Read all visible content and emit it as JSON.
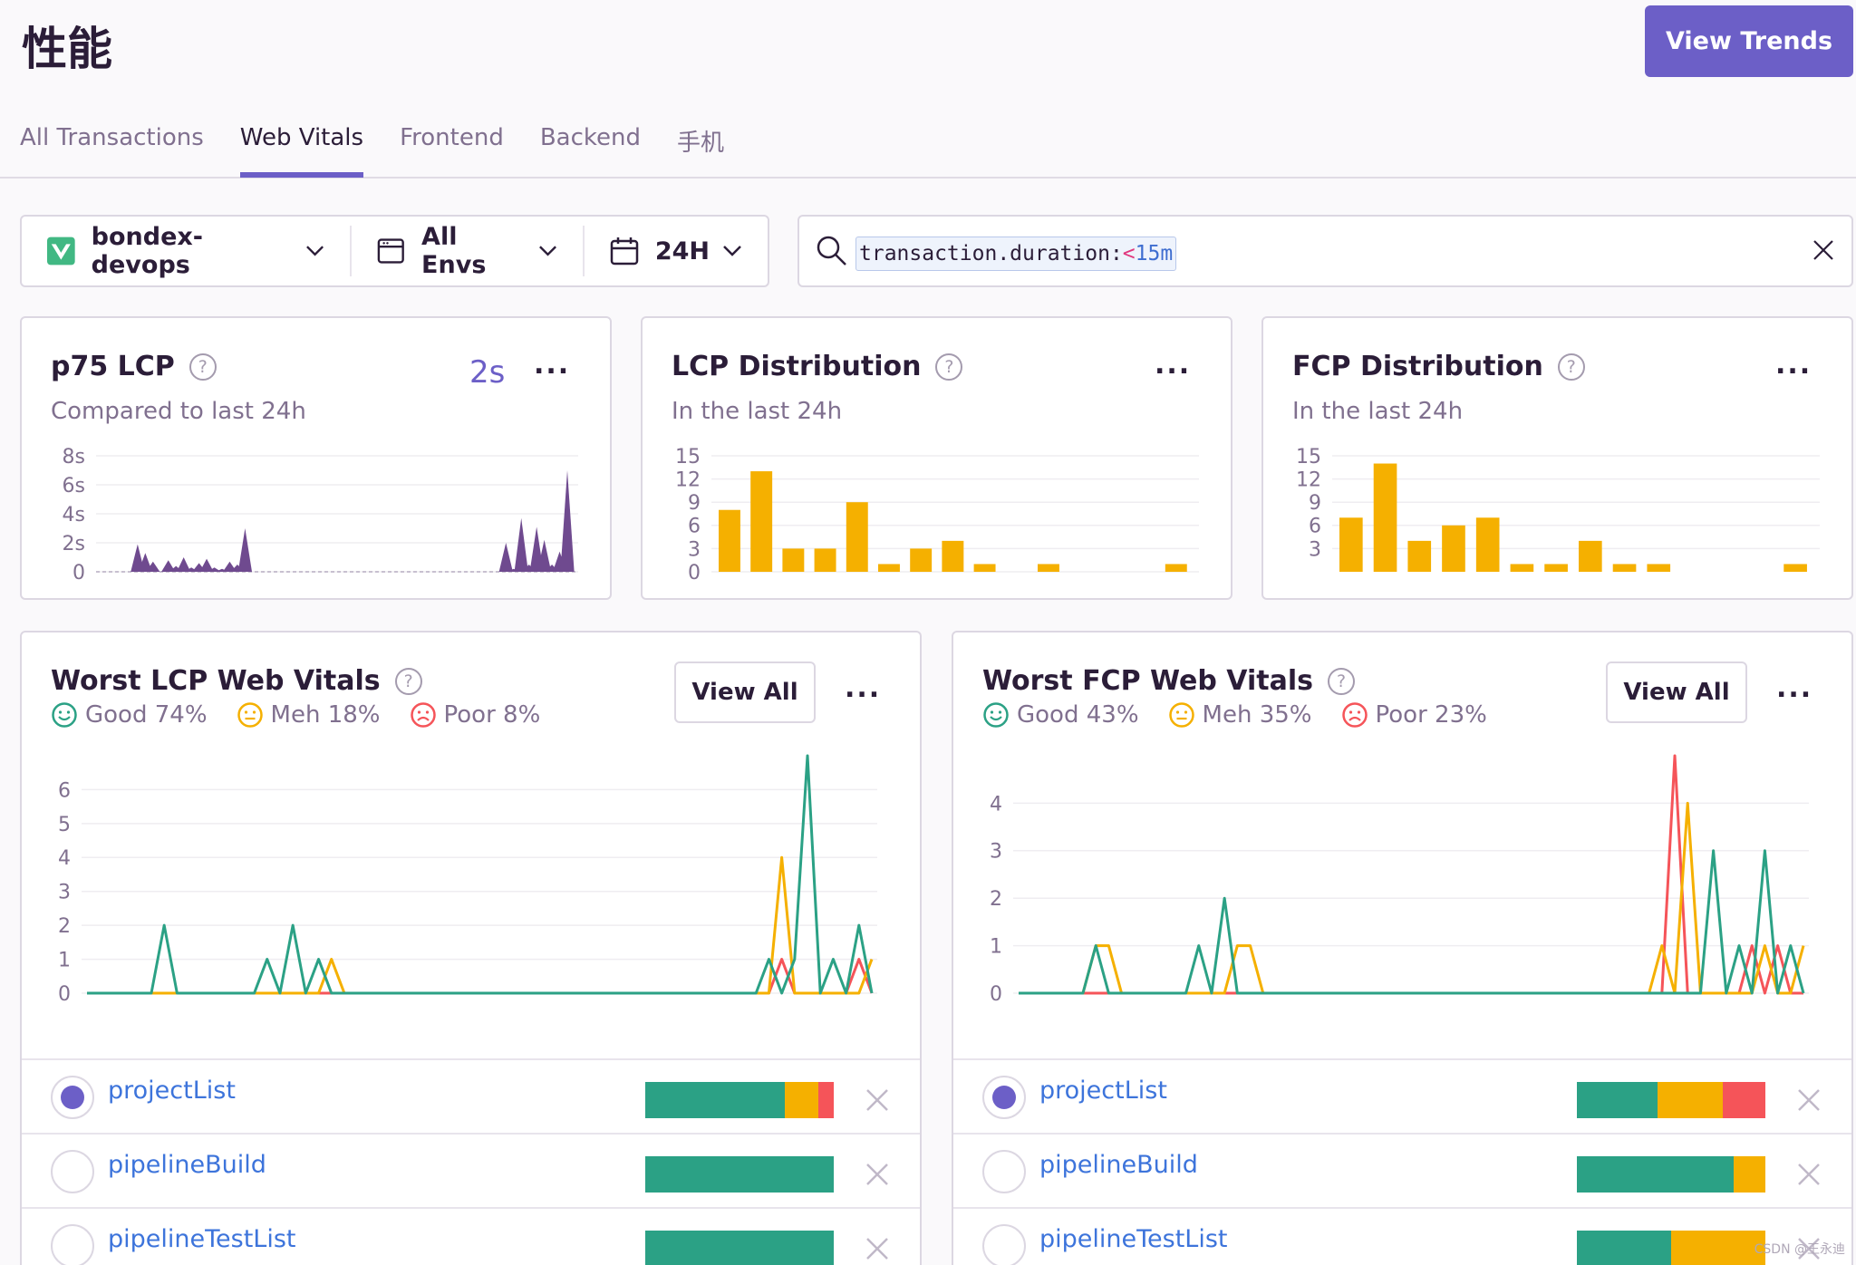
{
  "header": {
    "title": "性能",
    "view_trends_label": "View Trends"
  },
  "tabs": [
    {
      "label": "All Transactions",
      "active": false
    },
    {
      "label": "Web Vitals",
      "active": true
    },
    {
      "label": "Frontend",
      "active": false
    },
    {
      "label": "Backend",
      "active": false
    },
    {
      "label": "手机",
      "active": false
    }
  ],
  "filters": {
    "project": "bondex-devops",
    "environment": "All Envs",
    "period": "24H"
  },
  "search": {
    "key": "transaction.duration:",
    "operator": "<",
    "value": "15m"
  },
  "cards": {
    "p75_lcp": {
      "title": "p75 LCP",
      "subtitle": "Compared to last 24h",
      "value": "2s",
      "menu": "..."
    },
    "lcp_distribution": {
      "title": "LCP Distribution",
      "subtitle": "In the last 24h",
      "menu": "..."
    },
    "fcp_distribution": {
      "title": "FCP Distribution",
      "subtitle": "In the last 24h",
      "menu": "..."
    }
  },
  "vitals": {
    "lcp": {
      "title": "Worst LCP Web Vitals",
      "good": "Good 74%",
      "meh": "Meh 18%",
      "poor": "Poor 8%",
      "view_all": "View All",
      "menu": "..."
    },
    "fcp": {
      "title": "Worst FCP Web Vitals",
      "good": "Good 43%",
      "meh": "Meh 35%",
      "poor": "Poor 23%",
      "view_all": "View All",
      "menu": "..."
    }
  },
  "lcp_rows": [
    {
      "name": "projectList",
      "selected": true,
      "good": 0.74,
      "meh": 0.18,
      "poor": 0.08
    },
    {
      "name": "pipelineBuild",
      "selected": false,
      "good": 1.0,
      "meh": 0,
      "poor": 0
    },
    {
      "name": "pipelineTestList",
      "selected": false,
      "good": 1.0,
      "meh": 0,
      "poor": 0
    }
  ],
  "fcp_rows": [
    {
      "name": "projectList",
      "selected": true,
      "good": 0.43,
      "meh": 0.35,
      "poor": 0.23
    },
    {
      "name": "pipelineBuild",
      "selected": false,
      "good": 0.83,
      "meh": 0.17,
      "poor": 0
    },
    {
      "name": "pipelineTestList",
      "selected": false,
      "good": 0.5,
      "meh": 0.5,
      "poor": 0
    }
  ],
  "colors": {
    "accent": "#6c5fc7",
    "good": "#2ba185",
    "meh": "#f5b000",
    "poor": "#f55459",
    "area": "#6f4a8f"
  },
  "chart_data": [
    {
      "id": "p75_lcp",
      "type": "area",
      "yticks": [
        "8s",
        "6s",
        "4s",
        "2s",
        "0"
      ],
      "ylim": [
        0,
        8
      ],
      "unit": "s",
      "x": [
        0,
        1,
        2,
        3,
        4,
        5,
        6,
        7,
        8,
        9,
        10,
        11,
        12,
        13,
        14,
        15,
        16,
        17,
        18,
        19,
        20,
        21,
        22,
        23,
        24,
        25,
        26,
        27,
        28,
        29,
        30,
        31,
        32,
        33,
        34,
        35,
        36,
        37,
        38,
        39,
        40,
        41,
        42,
        43,
        44,
        45,
        46,
        47,
        48,
        49,
        50,
        51,
        52,
        53,
        54,
        55,
        56,
        57,
        58,
        59,
        60
      ],
      "values": [
        0,
        0,
        0,
        0,
        1.9,
        1.3,
        0.7,
        0,
        0.8,
        0.4,
        1,
        0.3,
        0.6,
        0.9,
        0.3,
        0.2,
        0.7,
        0.5,
        3,
        0,
        0,
        0,
        0,
        0,
        0,
        0,
        0,
        0,
        0,
        0,
        0,
        0,
        0,
        0,
        0,
        0,
        0,
        0,
        0,
        0,
        0,
        0,
        0,
        0,
        0,
        0,
        0,
        0,
        0,
        0,
        0,
        0,
        2,
        0.2,
        3.7,
        0.5,
        3.1,
        2.2,
        0.5,
        1.4,
        7
      ]
    },
    {
      "id": "lcp_distribution",
      "type": "bar",
      "yticks": [
        "15",
        "12",
        "9",
        "6",
        "3",
        "0"
      ],
      "ylim": [
        0,
        15
      ],
      "values": [
        8,
        13,
        3,
        3,
        9,
        1,
        3,
        4,
        1,
        0,
        1,
        0,
        0,
        0,
        1
      ]
    },
    {
      "id": "fcp_distribution",
      "type": "bar",
      "yticks": [
        "15",
        "12",
        "9",
        "6",
        "3"
      ],
      "ylim": [
        0,
        15
      ],
      "values": [
        7,
        14,
        4,
        6,
        7,
        1,
        1,
        4,
        1,
        1,
        0,
        0,
        0,
        1
      ]
    },
    {
      "id": "worst_lcp",
      "type": "line",
      "yticks": [
        "6",
        "5",
        "4",
        "3",
        "2",
        "1",
        "0"
      ],
      "ylim": [
        0,
        7
      ],
      "x": [
        0,
        1,
        2,
        3,
        4,
        5,
        6,
        7,
        8,
        9,
        10,
        11,
        12,
        13,
        14,
        15,
        16,
        17,
        18,
        19,
        20,
        21,
        22,
        23,
        24,
        25,
        26,
        27,
        28,
        29,
        30,
        31,
        32,
        33,
        34,
        35,
        36,
        37,
        38,
        39,
        40,
        41,
        42,
        43,
        44,
        45,
        46,
        47,
        48,
        49,
        50,
        51,
        52,
        53,
        54,
        55,
        56,
        57,
        58,
        59,
        60,
        61
      ],
      "series": [
        {
          "name": "Good",
          "color": "#2ba185",
          "values": [
            0,
            0,
            0,
            0,
            0,
            0,
            2,
            0,
            0,
            0,
            0,
            0,
            0,
            0,
            1,
            0,
            2,
            0,
            1,
            0,
            0,
            0,
            0,
            0,
            0,
            0,
            0,
            0,
            0,
            0,
            0,
            0,
            0,
            0,
            0,
            0,
            0,
            0,
            0,
            0,
            0,
            0,
            0,
            0,
            0,
            0,
            0,
            0,
            0,
            0,
            0,
            0,
            0,
            1,
            0,
            1,
            7,
            0,
            1,
            0,
            2,
            0
          ]
        },
        {
          "name": "Meh",
          "color": "#f5b000",
          "values": [
            0,
            0,
            0,
            0,
            0,
            0,
            0,
            0,
            0,
            0,
            0,
            0,
            0,
            0,
            0,
            0,
            0,
            0,
            0,
            1,
            0,
            0,
            0,
            0,
            0,
            0,
            0,
            0,
            0,
            0,
            0,
            0,
            0,
            0,
            0,
            0,
            0,
            0,
            0,
            0,
            0,
            0,
            0,
            0,
            0,
            0,
            0,
            0,
            0,
            0,
            0,
            0,
            0,
            0,
            4,
            0,
            0,
            0,
            0,
            0,
            0,
            1
          ]
        },
        {
          "name": "Poor",
          "color": "#f55459",
          "values": [
            0,
            0,
            0,
            0,
            0,
            0,
            0,
            0,
            0,
            0,
            0,
            0,
            0,
            0,
            0,
            0,
            0,
            0,
            0,
            0,
            0,
            0,
            0,
            0,
            0,
            0,
            0,
            0,
            0,
            0,
            0,
            0,
            0,
            0,
            0,
            0,
            0,
            0,
            0,
            0,
            0,
            0,
            0,
            0,
            0,
            0,
            0,
            0,
            0,
            0,
            0,
            0,
            0,
            0,
            1,
            0,
            0,
            0,
            0,
            0,
            1,
            0
          ]
        }
      ]
    },
    {
      "id": "worst_fcp",
      "type": "line",
      "yticks": [
        "4",
        "3",
        "2",
        "1",
        "0"
      ],
      "ylim": [
        0,
        5
      ],
      "x": [
        0,
        1,
        2,
        3,
        4,
        5,
        6,
        7,
        8,
        9,
        10,
        11,
        12,
        13,
        14,
        15,
        16,
        17,
        18,
        19,
        20,
        21,
        22,
        23,
        24,
        25,
        26,
        27,
        28,
        29,
        30,
        31,
        32,
        33,
        34,
        35,
        36,
        37,
        38,
        39,
        40,
        41,
        42,
        43,
        44,
        45,
        46,
        47,
        48,
        49,
        50,
        51,
        52,
        53,
        54,
        55,
        56,
        57,
        58,
        59,
        60,
        61
      ],
      "series": [
        {
          "name": "Good",
          "color": "#2ba185",
          "values": [
            0,
            0,
            0,
            0,
            0,
            0,
            1,
            0,
            0,
            0,
            0,
            0,
            0,
            0,
            1,
            0,
            2,
            0,
            0,
            0,
            0,
            0,
            0,
            0,
            0,
            0,
            0,
            0,
            0,
            0,
            0,
            0,
            0,
            0,
            0,
            0,
            0,
            0,
            0,
            0,
            0,
            0,
            0,
            0,
            0,
            0,
            0,
            0,
            0,
            0,
            0,
            0,
            0,
            0,
            3,
            0,
            1,
            0,
            3,
            0,
            1,
            0
          ]
        },
        {
          "name": "Meh",
          "color": "#f5b000",
          "values": [
            0,
            0,
            0,
            0,
            0,
            0,
            1,
            1,
            0,
            0,
            0,
            0,
            0,
            0,
            0,
            0,
            0,
            1,
            1,
            0,
            0,
            0,
            0,
            0,
            0,
            0,
            0,
            0,
            0,
            0,
            0,
            0,
            0,
            0,
            0,
            0,
            0,
            0,
            0,
            0,
            0,
            0,
            0,
            0,
            0,
            0,
            0,
            0,
            0,
            0,
            1,
            0,
            4,
            0,
            0,
            0,
            0,
            0,
            1,
            0,
            0,
            1
          ]
        },
        {
          "name": "Poor",
          "color": "#f55459",
          "values": [
            0,
            0,
            0,
            0,
            0,
            0,
            0,
            0,
            0,
            0,
            0,
            0,
            0,
            0,
            0,
            0,
            0,
            0,
            0,
            0,
            0,
            0,
            0,
            0,
            0,
            0,
            0,
            0,
            0,
            0,
            0,
            0,
            0,
            0,
            0,
            0,
            0,
            0,
            0,
            0,
            0,
            0,
            0,
            0,
            0,
            0,
            0,
            0,
            0,
            0,
            0,
            5,
            0,
            0,
            0,
            0,
            0,
            1,
            0,
            1,
            0,
            0
          ]
        }
      ]
    }
  ],
  "watermark": "CSDN @王永迪"
}
